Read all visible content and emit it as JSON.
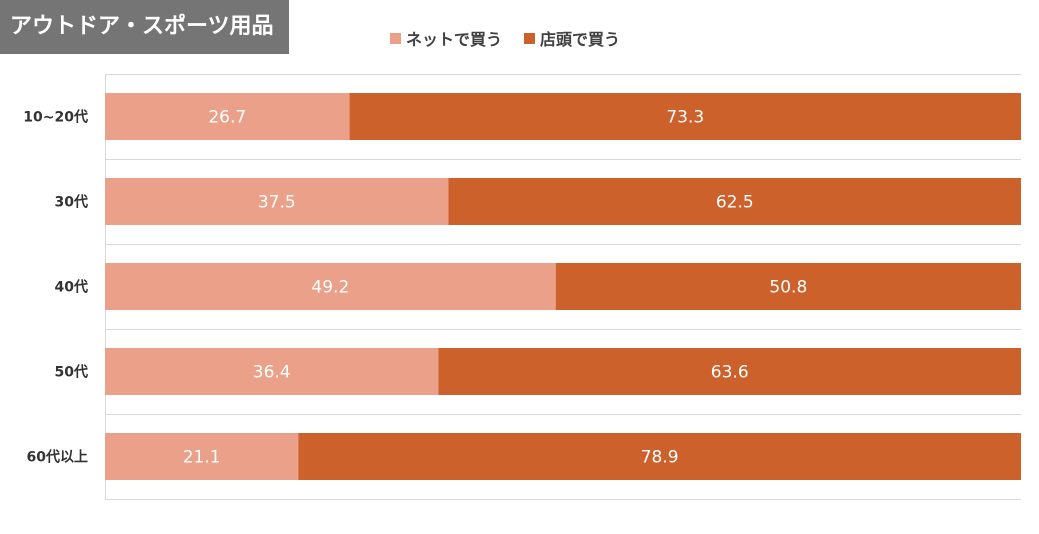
{
  "header": {
    "title": "アウトドア・スポーツ用品"
  },
  "colors": {
    "online": "#eba08a",
    "store": "#cd612c",
    "grid": "#d9d9d9"
  },
  "chart_data": {
    "type": "bar",
    "orientation": "horizontal",
    "stacked": true,
    "title": "アウトドア・スポーツ用品",
    "xlim": [
      0,
      100
    ],
    "categories": [
      "10~20代",
      "30代",
      "40代",
      "50代",
      "60代以上"
    ],
    "series": [
      {
        "name": "ネットで買う",
        "values": [
          26.7,
          37.5,
          49.2,
          36.4,
          21.1
        ]
      },
      {
        "name": "店頭で買う",
        "values": [
          73.3,
          62.5,
          50.8,
          63.6,
          78.9
        ]
      }
    ],
    "legend": "top"
  }
}
